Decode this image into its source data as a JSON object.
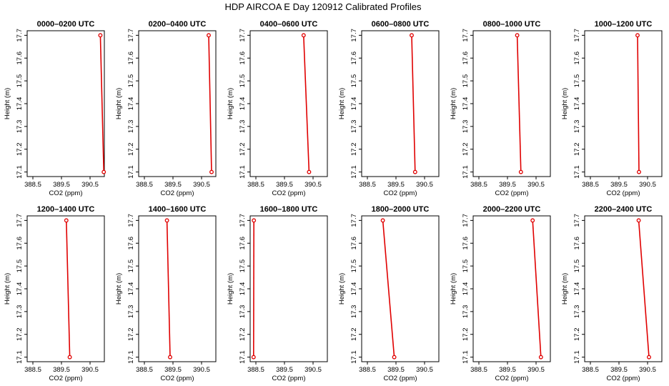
{
  "figure": {
    "title": "HDP AIRCOA E  Day 120912  Calibrated Profiles",
    "point_color": "#e00000",
    "line_color": "#e00000"
  },
  "chart_data": [
    {
      "type": "line",
      "title": "0000–0200 UTC",
      "xlabel": "CO2 (ppm)",
      "ylabel": "Height (m)",
      "xticks": [
        "388.5",
        "389.5",
        "390.5"
      ],
      "yticks": [
        "17.1",
        "17.2",
        "17.3",
        "17.4",
        "17.5",
        "17.6",
        "17.7"
      ],
      "xlim": [
        388.3,
        391.0
      ],
      "ylim": [
        17.08,
        17.72
      ],
      "series": [
        {
          "x": [
            390.86,
            390.98
          ],
          "y": [
            17.7,
            17.1
          ]
        }
      ]
    },
    {
      "type": "line",
      "title": "0200–0400 UTC",
      "xlabel": "CO2 (ppm)",
      "ylabel": "Height (m)",
      "xticks": [
        "388.5",
        "389.5",
        "390.5"
      ],
      "yticks": [
        "17.1",
        "17.2",
        "17.3",
        "17.4",
        "17.5",
        "17.6",
        "17.7"
      ],
      "xlim": [
        388.3,
        391.0
      ],
      "ylim": [
        17.08,
        17.72
      ],
      "series": [
        {
          "x": [
            390.75,
            390.85
          ],
          "y": [
            17.7,
            17.1
          ]
        }
      ]
    },
    {
      "type": "line",
      "title": "0400–0600 UTC",
      "xlabel": "CO2 (ppm)",
      "ylabel": "Height (m)",
      "xticks": [
        "388.5",
        "389.5",
        "390.5"
      ],
      "yticks": [
        "17.1",
        "17.2",
        "17.3",
        "17.4",
        "17.5",
        "17.6",
        "17.7"
      ],
      "xlim": [
        388.3,
        391.0
      ],
      "ylim": [
        17.08,
        17.72
      ],
      "series": [
        {
          "x": [
            390.17,
            390.36
          ],
          "y": [
            17.7,
            17.1
          ]
        }
      ]
    },
    {
      "type": "line",
      "title": "0600–0800 UTC",
      "xlabel": "CO2 (ppm)",
      "ylabel": "Height (m)",
      "xticks": [
        "388.5",
        "389.5",
        "390.5"
      ],
      "yticks": [
        "17.1",
        "17.2",
        "17.3",
        "17.4",
        "17.5",
        "17.6",
        "17.7"
      ],
      "xlim": [
        388.3,
        391.0
      ],
      "ylim": [
        17.08,
        17.72
      ],
      "series": [
        {
          "x": [
            390.05,
            390.17
          ],
          "y": [
            17.7,
            17.1
          ]
        }
      ]
    },
    {
      "type": "line",
      "title": "0800–1000 UTC",
      "xlabel": "CO2 (ppm)",
      "ylabel": "Height (m)",
      "xticks": [
        "388.5",
        "389.5",
        "390.5"
      ],
      "yticks": [
        "17.1",
        "17.2",
        "17.3",
        "17.4",
        "17.5",
        "17.6",
        "17.7"
      ],
      "xlim": [
        388.3,
        391.0
      ],
      "ylim": [
        17.08,
        17.72
      ],
      "series": [
        {
          "x": [
            389.84,
            389.97
          ],
          "y": [
            17.7,
            17.1
          ]
        }
      ]
    },
    {
      "type": "line",
      "title": "1000–1200 UTC",
      "xlabel": "CO2 (ppm)",
      "ylabel": "Height (m)",
      "xticks": [
        "388.5",
        "389.5",
        "390.5"
      ],
      "yticks": [
        "17.1",
        "17.2",
        "17.3",
        "17.4",
        "17.5",
        "17.6",
        "17.7"
      ],
      "xlim": [
        388.3,
        391.0
      ],
      "ylim": [
        17.08,
        17.72
      ],
      "series": [
        {
          "x": [
            390.15,
            390.2
          ],
          "y": [
            17.7,
            17.1
          ]
        }
      ]
    },
    {
      "type": "line",
      "title": "1200–1400 UTC",
      "xlabel": "CO2 (ppm)",
      "ylabel": "Height (m)",
      "xticks": [
        "388.5",
        "389.5",
        "390.5"
      ],
      "yticks": [
        "17.1",
        "17.2",
        "17.3",
        "17.4",
        "17.5",
        "17.6",
        "17.7"
      ],
      "xlim": [
        388.3,
        391.0
      ],
      "ylim": [
        17.08,
        17.72
      ],
      "series": [
        {
          "x": [
            389.67,
            389.79
          ],
          "y": [
            17.7,
            17.1
          ]
        }
      ]
    },
    {
      "type": "line",
      "title": "1400–1600 UTC",
      "xlabel": "CO2 (ppm)",
      "ylabel": "Height (m)",
      "xticks": [
        "388.5",
        "389.5",
        "390.5"
      ],
      "yticks": [
        "17.1",
        "17.2",
        "17.3",
        "17.4",
        "17.5",
        "17.6",
        "17.7"
      ],
      "xlim": [
        388.3,
        391.0
      ],
      "ylim": [
        17.08,
        17.72
      ],
      "series": [
        {
          "x": [
            389.29,
            389.4
          ],
          "y": [
            17.7,
            17.1
          ]
        }
      ]
    },
    {
      "type": "line",
      "title": "1600–1800 UTC",
      "xlabel": "CO2 (ppm)",
      "ylabel": "Height (m)",
      "xticks": [
        "388.5",
        "389.5",
        "390.5"
      ],
      "yticks": [
        "17.1",
        "17.2",
        "17.3",
        "17.4",
        "17.5",
        "17.6",
        "17.7"
      ],
      "xlim": [
        388.3,
        391.0
      ],
      "ylim": [
        17.08,
        17.72
      ],
      "series": [
        {
          "x": [
            388.43,
            388.42
          ],
          "y": [
            17.7,
            17.1
          ]
        }
      ]
    },
    {
      "type": "line",
      "title": "1800–2000 UTC",
      "xlabel": "CO2 (ppm)",
      "ylabel": "Height (m)",
      "xticks": [
        "388.5",
        "389.5",
        "390.5"
      ],
      "yticks": [
        "17.1",
        "17.2",
        "17.3",
        "17.4",
        "17.5",
        "17.6",
        "17.7"
      ],
      "xlim": [
        388.3,
        391.0
      ],
      "ylim": [
        17.08,
        17.72
      ],
      "series": [
        {
          "x": [
            389.04,
            389.44
          ],
          "y": [
            17.7,
            17.1
          ]
        }
      ]
    },
    {
      "type": "line",
      "title": "2000–2200 UTC",
      "xlabel": "CO2 (ppm)",
      "ylabel": "Height (m)",
      "xticks": [
        "388.5",
        "389.5",
        "390.5"
      ],
      "yticks": [
        "17.1",
        "17.2",
        "17.3",
        "17.4",
        "17.5",
        "17.6",
        "17.7"
      ],
      "xlim": [
        388.3,
        391.0
      ],
      "ylim": [
        17.08,
        17.72
      ],
      "series": [
        {
          "x": [
            390.38,
            390.67
          ],
          "y": [
            17.7,
            17.1
          ]
        }
      ]
    },
    {
      "type": "line",
      "title": "2200–2400 UTC",
      "xlabel": "CO2 (ppm)",
      "ylabel": "Height (m)",
      "xticks": [
        "388.5",
        "389.5",
        "390.5"
      ],
      "yticks": [
        "17.1",
        "17.2",
        "17.3",
        "17.4",
        "17.5",
        "17.6",
        "17.7"
      ],
      "xlim": [
        388.3,
        391.0
      ],
      "ylim": [
        17.08,
        17.72
      ],
      "series": [
        {
          "x": [
            390.19,
            390.55
          ],
          "y": [
            17.7,
            17.1
          ]
        }
      ]
    }
  ]
}
